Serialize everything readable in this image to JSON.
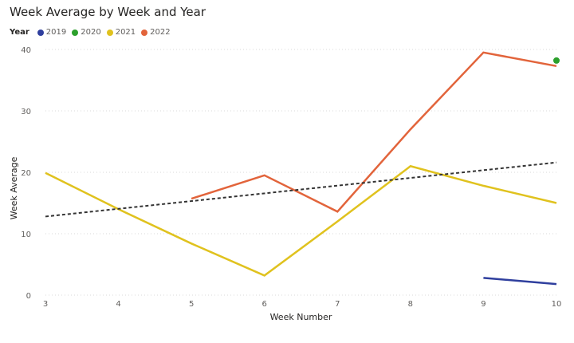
{
  "chart_data": {
    "type": "line",
    "title": "Week Average by Week and Year",
    "xlabel": "Week Number",
    "ylabel": "Week Average",
    "legend_title": "Year",
    "legend_position": "top-left",
    "x": [
      3,
      4,
      5,
      6,
      7,
      8,
      9,
      10
    ],
    "ylim": [
      0,
      40
    ],
    "yticks": [
      0,
      10,
      20,
      30,
      40
    ],
    "grid": true,
    "series": [
      {
        "name": "2019",
        "color": "#2f3f9e",
        "x": [
          9,
          10
        ],
        "values": [
          2.8,
          1.8
        ]
      },
      {
        "name": "2020",
        "color": "#2ca02c",
        "x": [
          10
        ],
        "values": [
          38.2
        ]
      },
      {
        "name": "2021",
        "color": "#e0c21e",
        "x": [
          3,
          4,
          5,
          6,
          7,
          8,
          9,
          10
        ],
        "values": [
          19.9,
          14.0,
          8.4,
          3.2,
          12.0,
          21.0,
          17.8,
          15.0
        ]
      },
      {
        "name": "2022",
        "color": "#e2643b",
        "x": [
          5,
          6,
          7,
          8,
          9,
          10
        ],
        "values": [
          15.7,
          19.5,
          13.6,
          27.0,
          39.5,
          37.3
        ]
      }
    ],
    "trendline": {
      "color": "#333333",
      "x": [
        3,
        10
      ],
      "values": [
        12.8,
        21.6
      ]
    }
  }
}
